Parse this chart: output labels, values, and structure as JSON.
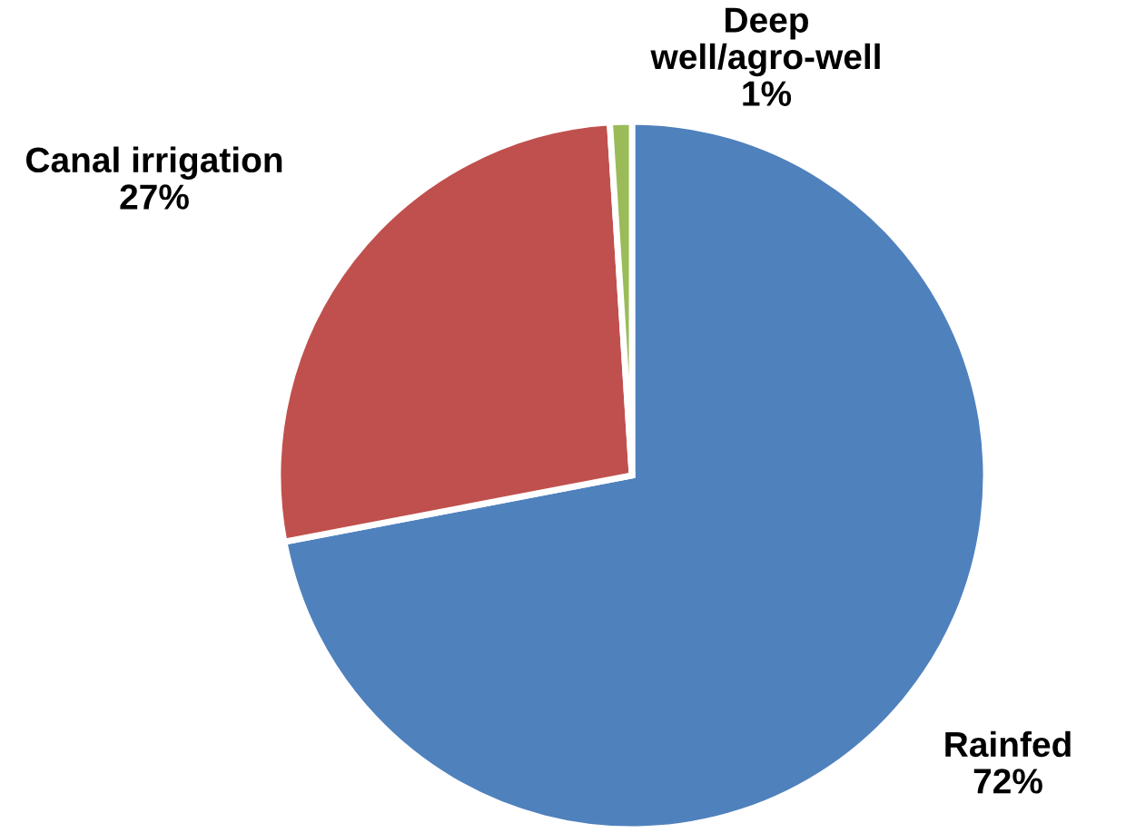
{
  "chart_data": {
    "type": "pie",
    "categories": [
      "Rainfed",
      "Canal irrigation",
      "Deep well/agro-well"
    ],
    "values": [
      72,
      27,
      1
    ],
    "value_labels": [
      "72%",
      "27%",
      "1%"
    ],
    "colors": [
      "#4f81bd",
      "#c0504d",
      "#9bbb59"
    ],
    "legend": false
  }
}
